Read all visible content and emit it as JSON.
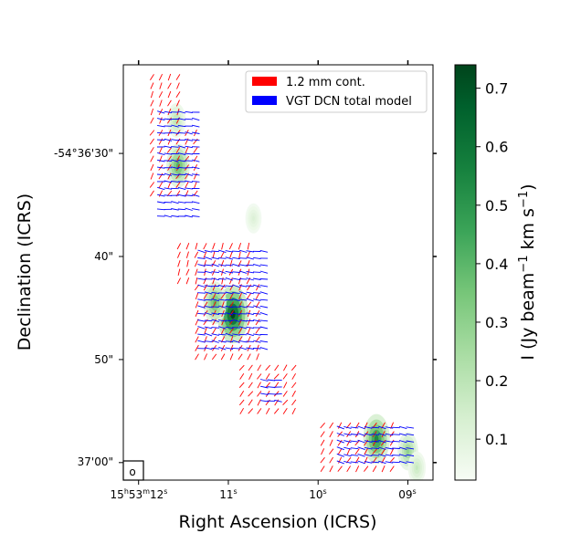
{
  "chart_data": {
    "type": "heatmap",
    "title": "",
    "xlabel": "Right Ascension (ICRS)",
    "ylabel": "Declination (ICRS)",
    "x_ticks": [
      {
        "h": "15",
        "hs": "h",
        "m": "53",
        "ms": "m",
        "s": "12",
        "ss": "s",
        "ra_s": 12.0
      },
      {
        "s": "11",
        "ss": "s",
        "ra_s": 11.0
      },
      {
        "s": "10",
        "ss": "s",
        "ra_s": 10.0
      },
      {
        "s": "09",
        "ss": "s",
        "ra_s": 9.0
      }
    ],
    "y_ticks": [
      {
        "label": "-54°36'30\"",
        "dec_arcsec": 30
      },
      {
        "label": "40\"",
        "dec_arcsec": 40
      },
      {
        "label": "50\"",
        "dec_arcsec": 50
      },
      {
        "label": "37'00\"",
        "dec_arcsec": 60
      }
    ],
    "xlim_ra_s": [
      12.17,
      8.72
    ],
    "ylim_dec_arcsec": [
      21.4,
      61.7
    ],
    "colorbar": {
      "label_main": "I (Jy beam",
      "label_sup1": "−1",
      "label_mid": " km s",
      "label_sup2": "−1",
      "label_end": ")",
      "min": 0.03,
      "max": 0.74,
      "ticks": [
        "0.1",
        "0.2",
        "0.3",
        "0.4",
        "0.5",
        "0.6",
        "0.7"
      ],
      "tick_values": [
        0.1,
        0.2,
        0.3,
        0.4,
        0.5,
        0.6,
        0.7
      ],
      "color_low": "#f7fcf5",
      "color_high": "#00441b"
    },
    "legend": [
      {
        "label": "1.2 mm cont.",
        "color": "#ff0000"
      },
      {
        "label": "VGT DCN total model",
        "color": "#0000ff"
      }
    ],
    "legend_position": "upper-right",
    "beam_symbol": "o",
    "intensity_peaks": [
      {
        "ra_s": 11.56,
        "dec_arcsec": 31.2,
        "peak": 0.42
      },
      {
        "ra_s": 11.58,
        "dec_arcsec": 26.8,
        "peak": 0.22
      },
      {
        "ra_s": 10.95,
        "dec_arcsec": 45.6,
        "peak": 0.74
      },
      {
        "ra_s": 11.15,
        "dec_arcsec": 44.5,
        "peak": 0.4
      },
      {
        "ra_s": 10.72,
        "dec_arcsec": 36.3,
        "peak": 0.12
      },
      {
        "ra_s": 9.35,
        "dec_arcsec": 57.7,
        "peak": 0.55
      },
      {
        "ra_s": 9.0,
        "dec_arcsec": 58.9,
        "peak": 0.3
      },
      {
        "ra_s": 8.9,
        "dec_arcsec": 60.5,
        "peak": 0.18
      }
    ],
    "vector_regions": [
      {
        "series": 0,
        "ra_range": [
          11.85,
          11.5
        ],
        "dec_range": [
          22.6,
          27.4
        ],
        "angle_deg": 65
      },
      {
        "series": 0,
        "ra_range": [
          11.85,
          11.3
        ],
        "dec_range": [
          28.0,
          34.2
        ],
        "angle_deg": 60
      },
      {
        "series": 0,
        "ra_range": [
          11.55,
          10.7
        ],
        "dec_range": [
          39.0,
          42.8
        ],
        "angle_deg": 70
      },
      {
        "series": 0,
        "ra_range": [
          11.35,
          10.6
        ],
        "dec_range": [
          43.0,
          50.2
        ],
        "angle_deg": 62
      },
      {
        "series": 0,
        "ra_range": [
          10.85,
          10.2
        ],
        "dec_range": [
          50.8,
          55.6
        ],
        "angle_deg": 55
      },
      {
        "series": 0,
        "ra_range": [
          9.95,
          9.1
        ],
        "dec_range": [
          56.4,
          61.0
        ],
        "angle_deg": 58
      },
      {
        "series": 1,
        "ra_range": [
          11.75,
          11.3
        ],
        "dec_range": [
          26.0,
          36.2
        ],
        "angle_deg": 172
      },
      {
        "series": 1,
        "ra_range": [
          11.3,
          10.6
        ],
        "dec_range": [
          39.5,
          49.5
        ],
        "angle_deg": 170
      },
      {
        "series": 1,
        "ra_range": [
          10.6,
          10.4
        ],
        "dec_range": [
          52.0,
          54.5
        ],
        "angle_deg": 175
      },
      {
        "series": 1,
        "ra_range": [
          9.75,
          8.95
        ],
        "dec_range": [
          56.6,
          60.6
        ],
        "angle_deg": 168
      }
    ]
  }
}
